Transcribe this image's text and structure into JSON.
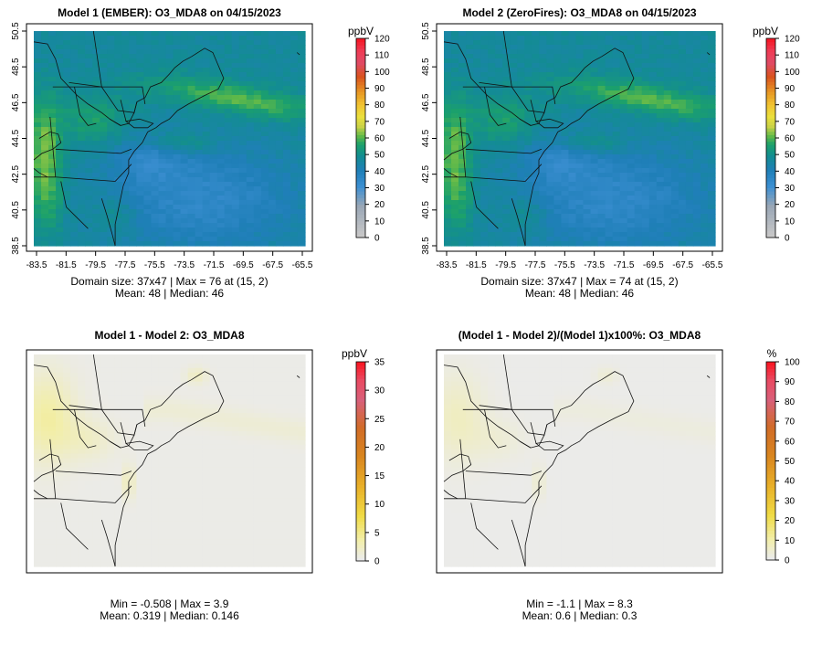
{
  "chart_data": [
    {
      "type": "heatmap",
      "title": "Model 1 (EMBER): O3_MDA8 on 04/15/2023",
      "units": "ppbV",
      "x_ticks": [
        "-83.5",
        "-81.5",
        "-79.5",
        "-77.5",
        "-75.5",
        "-73.5",
        "-71.5",
        "-69.5",
        "-67.5",
        "-65.5"
      ],
      "y_ticks": [
        "38.5",
        "40.5",
        "42.5",
        "44.5",
        "46.5",
        "48.5",
        "50.5"
      ],
      "colorbar_ticks": [
        "0",
        "10",
        "20",
        "30",
        "40",
        "50",
        "60",
        "70",
        "80",
        "90",
        "100",
        "110",
        "120"
      ],
      "colorbar_range": [
        0,
        120
      ],
      "stats_line1": "Domain size: 37x47 | Max = 76 at (15, 2)",
      "stats_line2": "Mean: 48 |  Median: 46",
      "domain_size": "37x47",
      "max": 76,
      "mean": 48,
      "median": 46
    },
    {
      "type": "heatmap",
      "title": "Model 2 (ZeroFires): O3_MDA8 on 04/15/2023",
      "units": "ppbV",
      "x_ticks": [
        "-83.5",
        "-81.5",
        "-79.5",
        "-77.5",
        "-75.5",
        "-73.5",
        "-71.5",
        "-69.5",
        "-67.5",
        "-65.5"
      ],
      "y_ticks": [
        "38.5",
        "40.5",
        "42.5",
        "44.5",
        "46.5",
        "48.5",
        "50.5"
      ],
      "colorbar_ticks": [
        "0",
        "10",
        "20",
        "30",
        "40",
        "50",
        "60",
        "70",
        "80",
        "90",
        "100",
        "110",
        "120"
      ],
      "colorbar_range": [
        0,
        120
      ],
      "stats_line1": "Domain size: 37x47 | Max = 74 at (15, 2)",
      "stats_line2": "Mean: 48 |  Median: 46",
      "domain_size": "37x47",
      "max": 74,
      "mean": 48,
      "median": 46
    },
    {
      "type": "heatmap",
      "title": "Model 1 - Model 2: O3_MDA8",
      "units": "ppbV",
      "colorbar_ticks": [
        "0",
        "5",
        "10",
        "15",
        "20",
        "25",
        "30",
        "35"
      ],
      "colorbar_range": [
        0,
        35
      ],
      "stats_line1": "Min = -0.508 | Max = 3.9",
      "stats_line2": "Mean: 0.319 |  Median: 0.146",
      "min": -0.508,
      "max": 3.9,
      "mean": 0.319,
      "median": 0.146
    },
    {
      "type": "heatmap",
      "title": "(Model 1 - Model 2)/(Model 1)x100%: O3_MDA8",
      "units": "%",
      "colorbar_ticks": [
        "0",
        "10",
        "20",
        "30",
        "40",
        "50",
        "60",
        "70",
        "80",
        "90",
        "100"
      ],
      "colorbar_range": [
        0,
        100
      ],
      "stats_line1": "Min = -1.1 | Max = 8.3",
      "stats_line2": "Mean: 0.6 |  Median: 0.3",
      "min": -1.1,
      "max": 8.3,
      "mean": 0.6,
      "median": 0.3
    }
  ]
}
